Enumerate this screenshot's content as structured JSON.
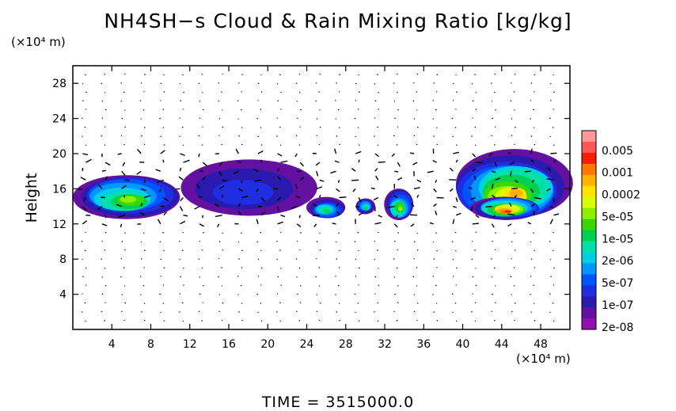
{
  "chart_data": {
    "type": "heatmap",
    "title": "NH4SH−s Cloud & Rain Mixing Ratio [kg/kg]",
    "ylabel": "Height",
    "xlabel": "",
    "x_unit": "(×10⁴ m)",
    "y_unit": "(×10⁴ m)",
    "xlim": [
      0,
      51
    ],
    "ylim": [
      0,
      30
    ],
    "x_ticks": [
      "4",
      "8",
      "12",
      "16",
      "20",
      "24",
      "28",
      "32",
      "36",
      "40",
      "44",
      "48"
    ],
    "y_ticks": [
      "4",
      "8",
      "12",
      "16",
      "20",
      "24",
      "28"
    ],
    "colorbar": {
      "labels": [
        "0.005",
        "0.001",
        "0.0002",
        "5e-05",
        "1e-05",
        "2e-06",
        "5e-07",
        "1e-07",
        "2e-08"
      ],
      "colors": [
        "#ff9999",
        "#ff5555",
        "#ff1a00",
        "#ff7700",
        "#ffb000",
        "#ffe000",
        "#d8ff00",
        "#8cf000",
        "#3ad800",
        "#00d050",
        "#00e0a8",
        "#00d0e0",
        "#0098ff",
        "#0055ff",
        "#1e2ee0",
        "#2a1ab0",
        "#6410a0",
        "#9010b0"
      ]
    },
    "regions": [
      {
        "x": [
          0,
          11
        ],
        "y": [
          12.8,
          17.8
        ],
        "level": "5e-05"
      },
      {
        "x": [
          11,
          25
        ],
        "y": [
          12.8,
          19.2
        ],
        "level": "1e-07"
      },
      {
        "x": [
          24,
          28
        ],
        "y": [
          12.6,
          15.0
        ],
        "level": "1e-05"
      },
      {
        "x": [
          29,
          31
        ],
        "y": [
          13.2,
          15.0
        ],
        "level": "1e-05"
      },
      {
        "x": [
          32,
          35
        ],
        "y": [
          12.4,
          16.0
        ],
        "level": "5e-05"
      },
      {
        "x": [
          39,
          51
        ],
        "y": [
          12.4,
          20.2
        ],
        "level": "0.0002"
      },
      {
        "x": [
          41,
          48
        ],
        "y": [
          12.6,
          15.2
        ],
        "level": "0.001"
      }
    ],
    "grid": false,
    "wind_vectors": true
  },
  "footer": {
    "time_label": "TIME  =  3515000.0"
  }
}
